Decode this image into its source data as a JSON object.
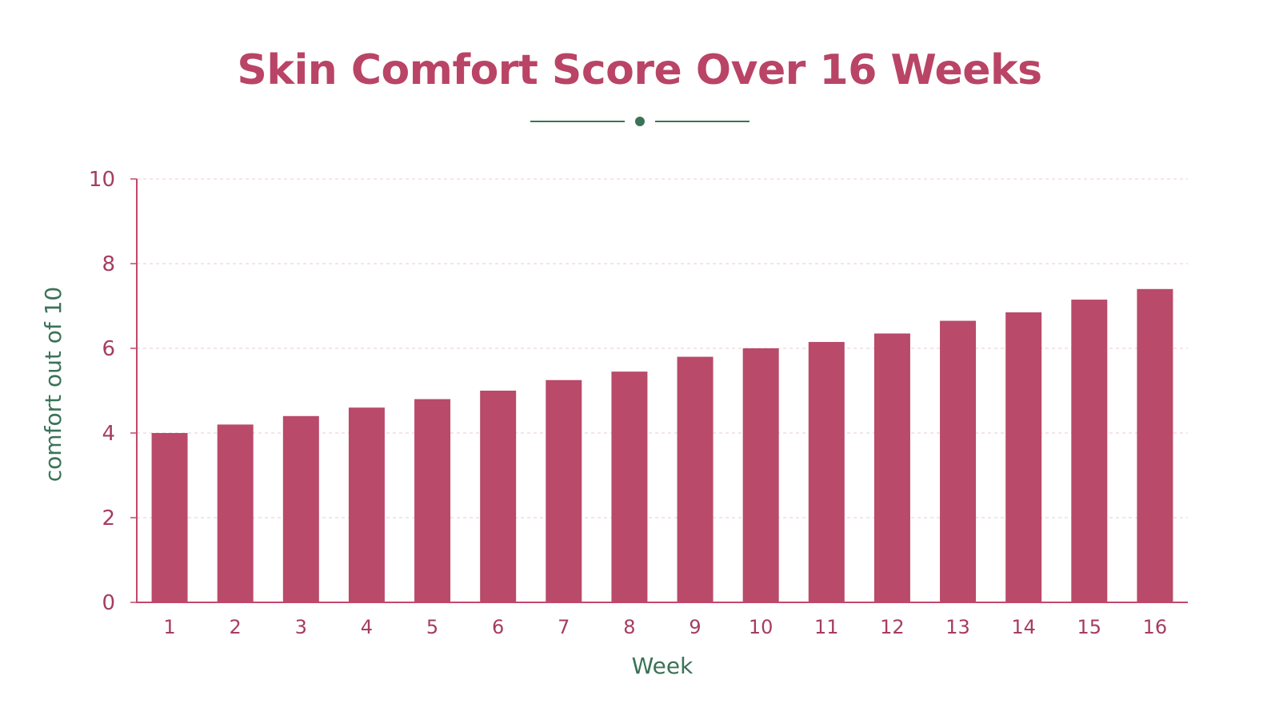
{
  "title": "Skin Comfort Score Over 16 Weeks",
  "colors": {
    "bar": "#b94a6a",
    "title": "#b94466",
    "axis": "#c2476b",
    "tick_text": "#a63d5e",
    "axis_label": "#3b7357",
    "grid": "#ecc9d4",
    "divider": "#3b7357"
  },
  "chart_data": {
    "type": "bar",
    "title": "Skin Comfort Score Over 16 Weeks",
    "xlabel": "Week",
    "ylabel": "comfort out of 10",
    "categories": [
      "1",
      "2",
      "3",
      "4",
      "5",
      "6",
      "7",
      "8",
      "9",
      "10",
      "11",
      "12",
      "13",
      "14",
      "15",
      "16"
    ],
    "values": [
      4.0,
      4.2,
      4.4,
      4.6,
      4.8,
      5.0,
      5.25,
      5.45,
      5.8,
      6.0,
      6.15,
      6.35,
      6.65,
      6.85,
      7.15,
      7.4
    ],
    "ylim": [
      0,
      10
    ],
    "yticks": [
      0,
      2,
      4,
      6,
      8,
      10
    ],
    "grid": true,
    "legend": "none"
  }
}
